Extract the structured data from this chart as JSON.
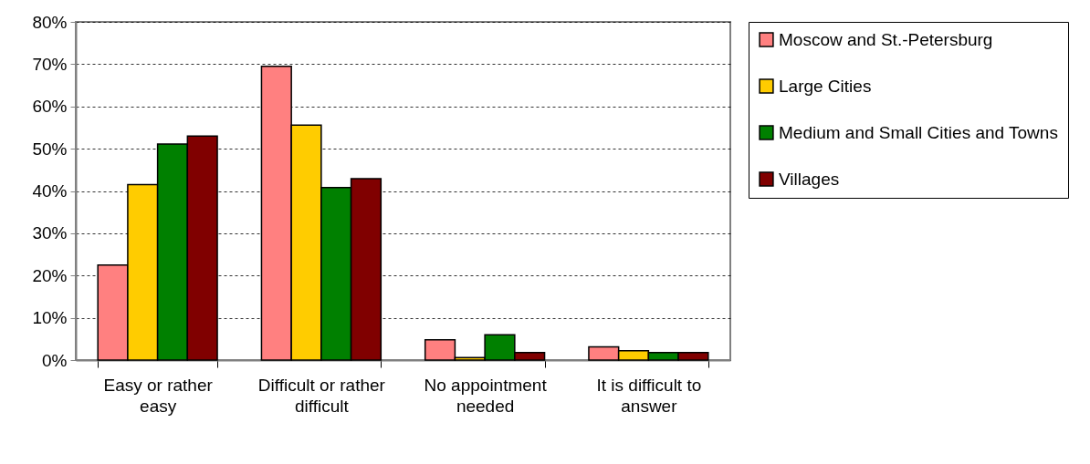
{
  "chart_data": {
    "type": "bar",
    "categories": [
      "Easy or rather easy",
      "Difficult or rather difficult",
      "No appointment needed",
      "It is difficult to answer"
    ],
    "series": [
      {
        "name": "Moscow and St.-Petersburg",
        "color": "#ff8080",
        "values": [
          22.5,
          69.5,
          4.8,
          3.1
        ]
      },
      {
        "name": "Large Cities",
        "color": "#ffcc00",
        "values": [
          41.5,
          55.6,
          0.6,
          2.2
        ]
      },
      {
        "name": "Medium and Small Cities and Towns",
        "color": "#008000",
        "values": [
          51.1,
          40.8,
          6.0,
          1.8
        ]
      },
      {
        "name": "Villages",
        "color": "#800000",
        "values": [
          53.0,
          42.9,
          1.8,
          1.8
        ]
      }
    ],
    "ylim": [
      0,
      80
    ],
    "yticks": [
      {
        "value": 0,
        "label": "0%"
      },
      {
        "value": 10,
        "label": "10%"
      },
      {
        "value": 20,
        "label": "20%"
      },
      {
        "value": 30,
        "label": "30%"
      },
      {
        "value": 40,
        "label": "40%"
      },
      {
        "value": 50,
        "label": "50%"
      },
      {
        "value": 60,
        "label": "60%"
      },
      {
        "value": 70,
        "label": "70%"
      },
      {
        "value": 80,
        "label": "80%"
      }
    ],
    "grid": "y",
    "legend": "right"
  }
}
